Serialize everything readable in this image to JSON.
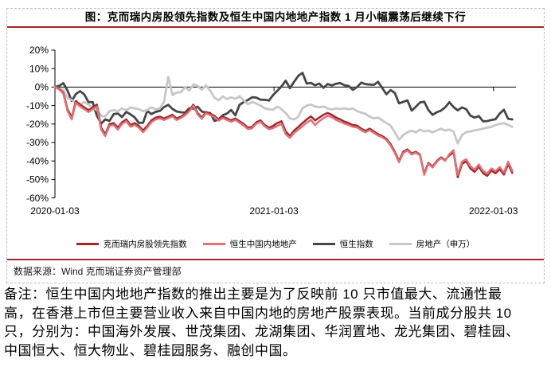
{
  "figure": {
    "title": "图：克而瑞内房股领先指数及恒生中国内地地产指数 1 月小幅震荡后继续下行",
    "source": "数据来源：Wind 克而瑞证券资产管理部",
    "note": "备注：恒生中国内地地产指数的推出主要是为了反映前 10 只市值最大、流通性最\n高，在香港上市但主要营业收入来自中国内地的房地产股票表现。当前成分股共 10\n只，分别为：中国海外发展、世茂集团、龙湖集团、华润置地、龙光集团、碧桂园、\n中国恒大、恒大物业、碧桂园服务、融创中国。",
    "accent_color": "#a1282b",
    "border_color": "#bfbfbf"
  },
  "chart_data": {
    "type": "line",
    "title": "图：克而瑞内房股领先指数及恒生中国内地地产指数 1 月小幅震荡后继续下行",
    "x_unit": "weeks since 2020-01-03",
    "y_unit": "%",
    "ylim": [
      -60,
      20
    ],
    "grid": false,
    "legend_position": "bottom",
    "y_ticks": [
      20,
      10,
      0,
      -10,
      -20,
      -30,
      -40,
      -50,
      -60
    ],
    "y_tick_labels": [
      "20%",
      "10%",
      "0%",
      "-10%",
      "-20%",
      "-30%",
      "-40%",
      "-50%",
      "-60%"
    ],
    "x_ticks": [
      {
        "label": "2020-01-03",
        "week": 0
      },
      {
        "label": "2021-01-03",
        "week": 52.2
      },
      {
        "label": "2022-01-03",
        "week": 104.5
      }
    ],
    "series": [
      {
        "name": "克而瑞内房股领先指数",
        "color": "#9e2a2d",
        "stroke_width": 2.5,
        "values": [
          0,
          -1,
          -3,
          -12,
          -16.5,
          -7.5,
          -9.5,
          -11,
          -12.5,
          -11,
          -9.5,
          -22,
          -25.5,
          -20,
          -19.5,
          -22,
          -19,
          -17.5,
          -20.5,
          -19.5,
          -21,
          -23.5,
          -21,
          -18,
          -16.5,
          -16,
          -17,
          -16,
          -15,
          -17,
          -16,
          -14.5,
          -12.5,
          -9.5,
          -14,
          -16.5,
          -13.5,
          -14.5,
          -15.5,
          -17.5,
          -16,
          -17,
          -18,
          -17,
          -18.5,
          -20,
          -22,
          -21.5,
          -19,
          -18,
          -20.5,
          -22,
          -21,
          -19.5,
          -18.5,
          -24,
          -26.5,
          -23.5,
          -21.5,
          -19.5,
          -17.5,
          -15.8,
          -18,
          -16.5,
          -15,
          -14,
          -15,
          -16.5,
          -17.5,
          -18.7,
          -19.5,
          -20.5,
          -20.8,
          -22.5,
          -23.7,
          -22.5,
          -24,
          -25.5,
          -26.5,
          -28,
          -31,
          -35,
          -40,
          -35,
          -33.7,
          -36,
          -35,
          -36.6,
          -47,
          -41,
          -43,
          -40,
          -38,
          -39.5,
          -37,
          -35.2,
          -48.8,
          -41.6,
          -40.2,
          -44,
          -45.9,
          -43.1,
          -46.5,
          -48.1,
          -45.2,
          -46.7,
          -44.5,
          -47.4,
          -41.6,
          -46.5
        ]
      },
      {
        "name": "恒生中国内地地产",
        "color": "#df7277",
        "stroke_width": 2.5,
        "values": [
          0,
          -1.3,
          -3.5,
          -13,
          -17.5,
          -8.5,
          -10.5,
          -12,
          -13.5,
          -12,
          -10.5,
          -23,
          -26.5,
          -21,
          -20.5,
          -23,
          -20,
          -18.5,
          -21.5,
          -20.5,
          -22,
          -24.5,
          -22,
          -19,
          -17.5,
          -17,
          -17.8,
          -16.8,
          -15.8,
          -17.8,
          -16.8,
          -15.2,
          -13.2,
          -10.2,
          -14.8,
          -17.2,
          -14.2,
          -15.2,
          -16.2,
          -18.2,
          -16.8,
          -17.8,
          -18.8,
          -17.8,
          -19.3,
          -20.8,
          -22.8,
          -22.3,
          -19.8,
          -18.8,
          -21.3,
          -22.8,
          -22.2,
          -21,
          -20,
          -25.5,
          -27.5,
          -24.8,
          -23,
          -21.2,
          -19.2,
          -17.8,
          -20.5,
          -18.5,
          -16.8,
          -15.5,
          -16.3,
          -17.8,
          -18.8,
          -19.8,
          -20.5,
          -21.5,
          -21.8,
          -23.3,
          -24.5,
          -23.3,
          -24.8,
          -26.2,
          -27.2,
          -28.7,
          -31.7,
          -35.7,
          -40.7,
          -35.7,
          -34.3,
          -36.5,
          -35.5,
          -37,
          -47.5,
          -41.5,
          -43.5,
          -40.5,
          -38.4,
          -39.9,
          -36.2,
          -34.2,
          -47.6,
          -40.4,
          -39,
          -42.8,
          -44.7,
          -41.9,
          -45.3,
          -46.9,
          -44,
          -45.5,
          -43.3,
          -46.2,
          -40.4,
          -45.3
        ]
      },
      {
        "name": "恒生指数",
        "color": "#464646",
        "stroke_width": 2.8,
        "values": [
          0,
          0.7,
          2.1,
          -1.9,
          -7.5,
          -3.7,
          -2.2,
          -4,
          -8.2,
          -8.1,
          -15.5,
          -19.8,
          -17.5,
          -18.3,
          -14.6,
          -14.3,
          -16.2,
          -13.4,
          -14.8,
          -16.4,
          -19.4,
          -19.3,
          -12.9,
          -14.6,
          -13.4,
          -12.9,
          -10.8,
          -9.6,
          -11.8,
          -13.2,
          -13.6,
          -13.8,
          -11.5,
          -11.7,
          -10.6,
          -13.2,
          -13.9,
          -14,
          -18.3,
          -17.5,
          -15.2,
          -14.3,
          -12.4,
          -15.3,
          -9.6,
          -8.1,
          -7,
          -5.5,
          -5.7,
          -6.8,
          -6.9,
          -7.3,
          -4.3,
          -2,
          0.4,
          3.5,
          -0.6,
          2.9,
          6.1,
          7.7,
          1.9,
          2.3,
          1,
          1.9,
          -0.4,
          1.7,
          0.9,
          1.8,
          2.2,
          1,
          0.6,
          -1.5,
          0,
          2.4,
          1.6,
          1.4,
          1.2,
          2.9,
          -0.5,
          -3.9,
          -1.6,
          -3.2,
          -8.8,
          -8,
          -7.2,
          -12.7,
          -10.7,
          -8.3,
          -7.9,
          -12.4,
          -15,
          -13.6,
          -12.7,
          -11,
          -8.2,
          -10.8,
          -12.6,
          -11,
          -12,
          -15.4,
          -16.5,
          -15.7,
          -18.5,
          -18.4,
          -17.8,
          -17.4,
          -14.3,
          -12.3,
          -17.2,
          -17.5
        ]
      },
      {
        "name": "房地产（申万）",
        "color": "#c7c7c7",
        "stroke_width": 2.8,
        "values": [
          0,
          -0.8,
          -1.5,
          -6,
          -7,
          -8.5,
          -9.5,
          -8,
          -9.5,
          -11,
          -12.5,
          -15.5,
          -16,
          -13,
          -12.5,
          -13,
          -11.5,
          -12.5,
          -11,
          -11.5,
          -12,
          -13,
          -12.5,
          -11,
          -12,
          -11.5,
          -8,
          5.5,
          -4.2,
          -3,
          -2.8,
          0,
          -2,
          1.5,
          0.7,
          -1.4,
          1,
          -2,
          -5.7,
          -7.2,
          -5,
          -6.5,
          -5.5,
          -6.4,
          -5,
          -7.2,
          -9.3,
          -8,
          -9,
          -10,
          -11.5,
          -12,
          -12.3,
          -10.5,
          -12,
          -14,
          -17,
          -17.5,
          -16,
          -11.5,
          -10,
          -9.5,
          -10.5,
          -11,
          -10.5,
          -11.5,
          -12.2,
          -11.5,
          -11.8,
          -11.5,
          -12,
          -11.5,
          -13,
          -13.8,
          -14.5,
          -16,
          -17,
          -16.5,
          -18,
          -19.5,
          -20.8,
          -24.5,
          -28.5,
          -26,
          -24.5,
          -23.6,
          -24.5,
          -23,
          -24,
          -23.5,
          -24.5,
          -23.5,
          -22.5,
          -23.5,
          -23,
          -24,
          -30.5,
          -26,
          -24.4,
          -24,
          -23.5,
          -23,
          -22.5,
          -22,
          -21.5,
          -20.5,
          -20,
          -19.5,
          -20.5,
          -21.5
        ]
      }
    ],
    "draw_order": [
      2,
      3,
      0,
      1
    ]
  }
}
